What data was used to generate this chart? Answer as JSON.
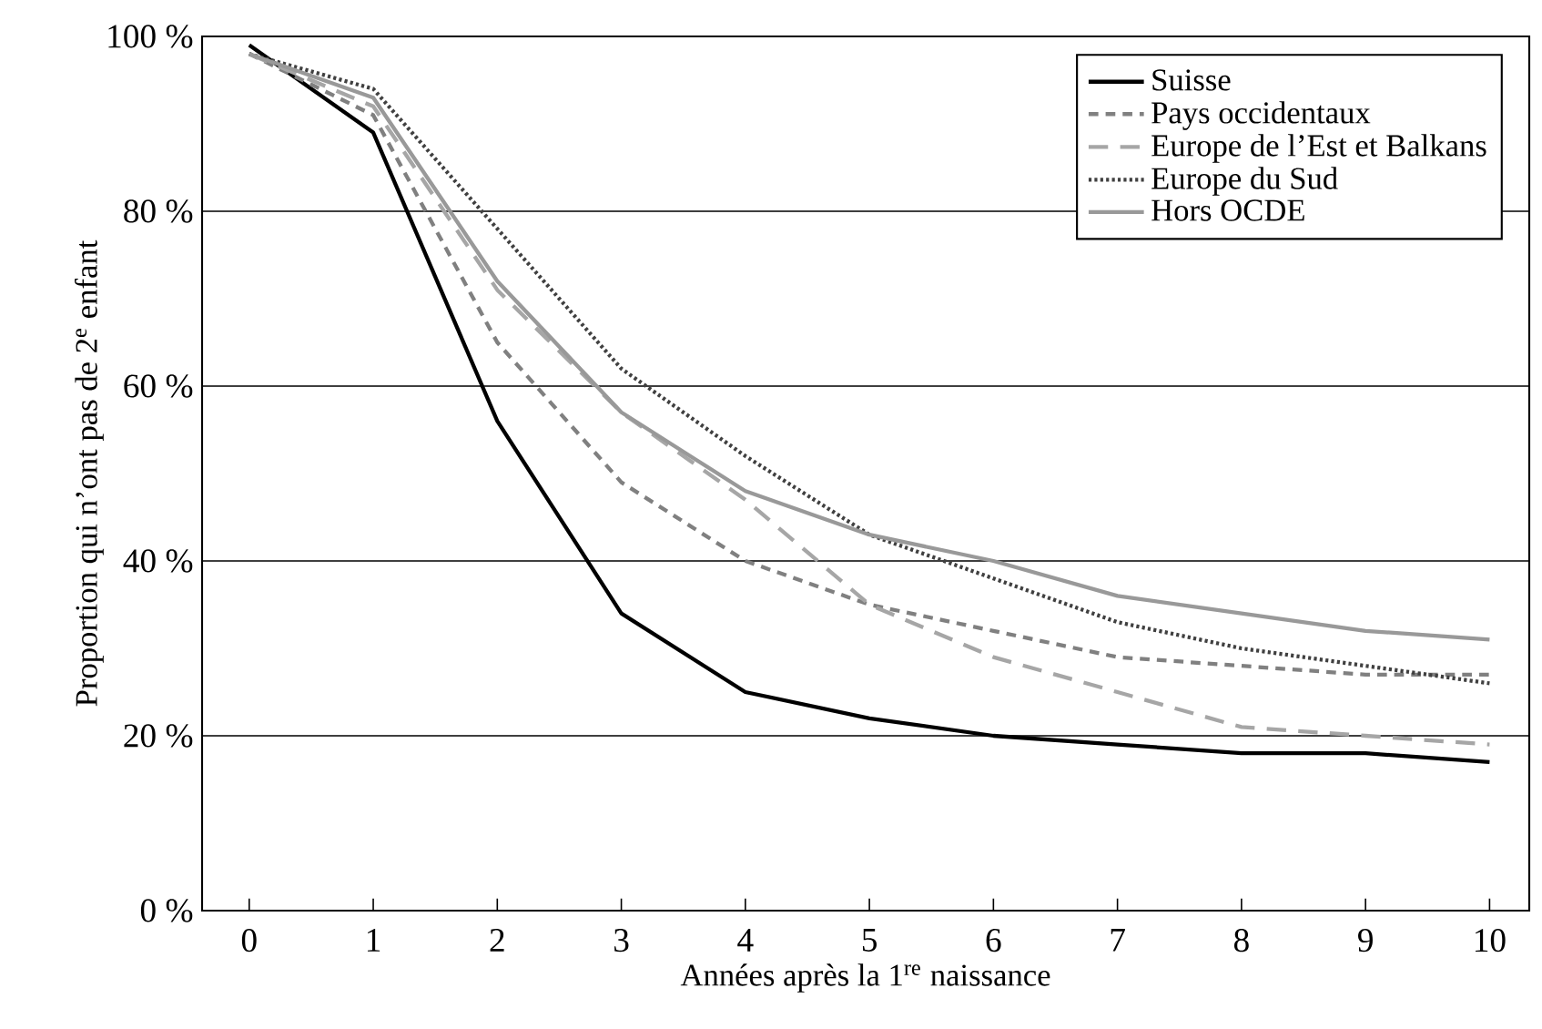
{
  "chart_data": {
    "type": "line",
    "xlabel": "Années après la 1$^{re}$ naissance",
    "ylabel": "Proportion qui n’ont pas de 2$^{e}$ enfant",
    "categories": [
      "0",
      "1",
      "2",
      "3",
      "4",
      "5",
      "6",
      "7",
      "8",
      "9",
      "10"
    ],
    "series": [
      {
        "name": "Suisse",
        "color": "#000000",
        "line_style": "solid",
        "values": [
          99,
          89,
          56,
          34,
          25,
          22,
          20,
          19,
          18,
          18,
          17
        ]
      },
      {
        "name": "Pays occidentaux",
        "color": "#808080",
        "line_style": "dashed",
        "values": [
          98,
          91,
          65,
          49,
          40,
          35,
          32,
          29,
          28,
          27,
          27
        ]
      },
      {
        "name": "Europe de l’Est et Balkans",
        "color": "#a6a6a6",
        "line_style": "dashed",
        "values": [
          98,
          92,
          71,
          57,
          47,
          35,
          29,
          25,
          21,
          20,
          19
        ]
      },
      {
        "name": "Europe du Sud",
        "color": "#404040",
        "line_style": "dotted",
        "values": [
          98,
          94,
          78,
          62,
          52,
          43,
          38,
          33,
          30,
          28,
          26
        ]
      },
      {
        "name": "Hors OCDE",
        "color": "#999999",
        "line_style": "solid",
        "values": [
          98,
          93,
          72,
          57,
          48,
          43,
          40,
          36,
          34,
          32,
          31
        ]
      }
    ],
    "ylim": [
      0,
      100
    ],
    "yticks": [
      {
        "value": 0,
        "label": "0 %"
      },
      {
        "value": 20,
        "label": "20 %"
      },
      {
        "value": 40,
        "label": "40 %"
      },
      {
        "value": 60,
        "label": "60 %"
      },
      {
        "value": 80,
        "label": "80 %"
      },
      {
        "value": 100,
        "label": "100 %"
      }
    ],
    "grid": "y",
    "legend": "top right",
    "marker": "none"
  }
}
